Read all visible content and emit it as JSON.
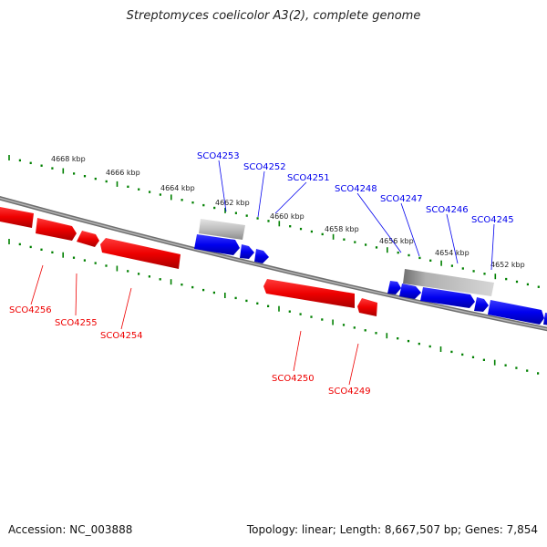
{
  "title": "Streptomyces coelicolor A3(2), complete genome",
  "footer": {
    "accession": "Accession: NC_003888",
    "summary": "Topology: linear; Length: 8,667,507 bp; Genes: 7,854"
  },
  "colors": {
    "forward_gene": "#0000ee",
    "reverse_gene": "#ee0000",
    "ticks": "#008000",
    "backbone": "#888888",
    "pseudo_gene": "#bbbbbb"
  },
  "kbp_labels": [
    "4668 kbp",
    "4666 kbp",
    "4664 kbp",
    "4662 kbp",
    "4660 kbp",
    "4658 kbp",
    "4656 kbp",
    "4654 kbp",
    "4652 kbp"
  ],
  "genes_forward": [
    "SCO4253",
    "SCO4252",
    "SCO4251",
    "SCO4248",
    "SCO4247",
    "SCO4246",
    "SCO4245"
  ],
  "genes_reverse": [
    "SCO4256",
    "SCO4255",
    "SCO4254",
    "SCO4250",
    "SCO4249"
  ]
}
